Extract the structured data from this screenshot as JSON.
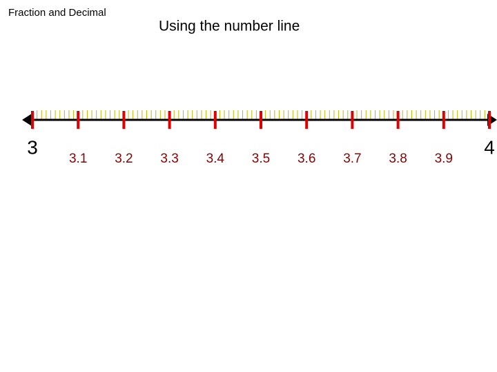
{
  "header": {
    "corner_label": "Fraction and Decimal",
    "title": "Using the number line"
  },
  "number_line": {
    "labels": [
      "3",
      "3.1",
      "3.2",
      "3.3",
      "3.4",
      "3.5",
      "3.6",
      "3.7",
      "3.8",
      "3.9",
      "4"
    ]
  }
}
